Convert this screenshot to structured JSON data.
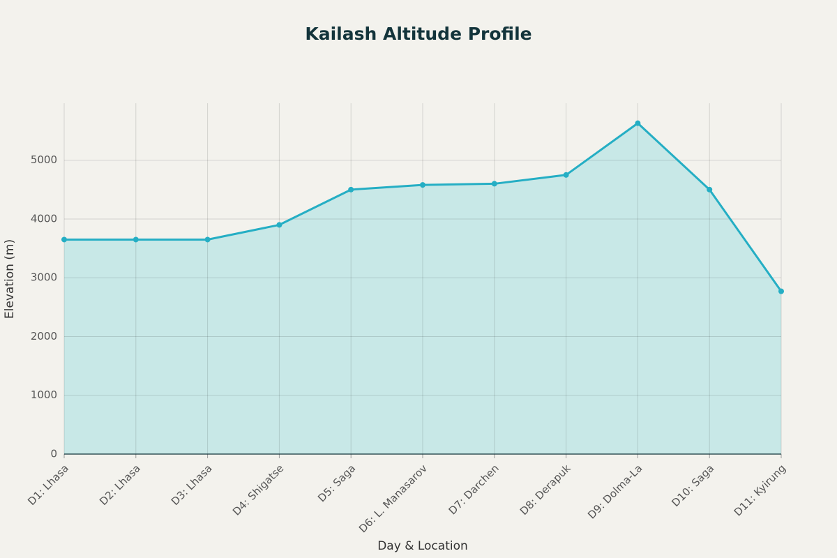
{
  "chart_data": {
    "type": "area",
    "title": "Kailash Altitude Profile",
    "x_label": "Day & Location",
    "y_label": "Elevation (m)",
    "categories": [
      "D1: Lhasa",
      "D2: Lhasa",
      "D3: Lhasa",
      "D4: Shigatse",
      "D5: Saga",
      "D6: L. Manasarov",
      "D7: Darchen",
      "D8: Derapuk",
      "D9: Dolma-La",
      "D10: Saga",
      "D11: Kyirung"
    ],
    "values": [
      3650,
      3650,
      3650,
      3900,
      4500,
      4580,
      4600,
      4750,
      5630,
      4500,
      2770
    ],
    "color": "#25aec4",
    "fill_color": "#c8e8e7",
    "ylim": [
      0,
      5970
    ],
    "yticks": [
      0,
      1000,
      2000,
      3000,
      4000,
      5000
    ],
    "grid": true
  }
}
